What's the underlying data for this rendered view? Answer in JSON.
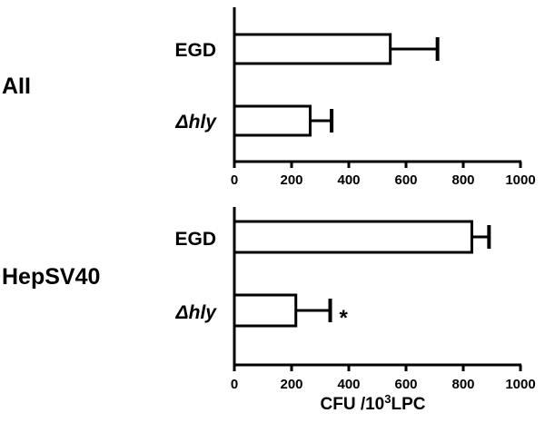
{
  "chart_data": [
    {
      "type": "bar",
      "orientation": "horizontal",
      "group_label": "AII",
      "categories": [
        "EGD",
        "Δhly"
      ],
      "values": [
        545,
        265
      ],
      "errors": [
        165,
        75
      ],
      "annotations": [
        "",
        ""
      ],
      "xlim": [
        0,
        1000
      ],
      "xticks": [
        "0",
        "200",
        "400",
        "600",
        "800",
        "1000"
      ]
    },
    {
      "type": "bar",
      "orientation": "horizontal",
      "group_label": "HepSV40",
      "categories": [
        "EGD",
        "Δhly"
      ],
      "values": [
        830,
        215
      ],
      "errors": [
        60,
        120
      ],
      "annotations": [
        "",
        "*"
      ],
      "xlim": [
        0,
        1000
      ],
      "xticks": [
        "0",
        "200",
        "400",
        "600",
        "800",
        "1000"
      ]
    }
  ],
  "axis_title": {
    "prefix": "CFU /10",
    "superscript": "3",
    "suffix": "LPC"
  }
}
